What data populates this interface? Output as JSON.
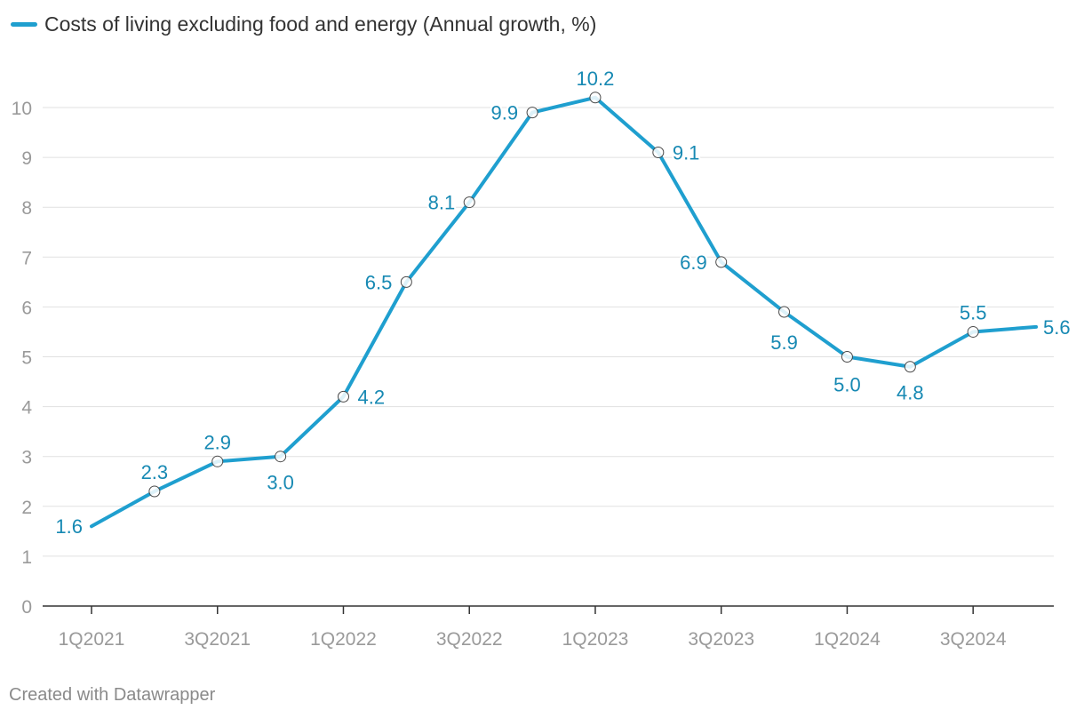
{
  "chart_data": {
    "type": "line",
    "title": "",
    "xlabel": "",
    "ylabel": "",
    "ylim": [
      0,
      10
    ],
    "y_ticks": [
      "0",
      "1",
      "2",
      "3",
      "4",
      "5",
      "6",
      "7",
      "8",
      "9",
      "10"
    ],
    "x_tick_labels": [
      "1Q2021",
      "3Q2021",
      "1Q2022",
      "3Q2022",
      "1Q2023",
      "3Q2023",
      "1Q2024",
      "3Q2024"
    ],
    "categories": [
      "1Q2021",
      "2Q2021",
      "3Q2021",
      "4Q2021",
      "1Q2022",
      "2Q2022",
      "3Q2022",
      "4Q2022",
      "1Q2023",
      "2Q2023",
      "3Q2023",
      "4Q2023",
      "1Q2024",
      "2Q2024",
      "3Q2024",
      "4Q2024"
    ],
    "series": [
      {
        "name": "Costs of living excluding food and energy (Annual growth, %)",
        "values": [
          1.6,
          2.3,
          2.9,
          3.0,
          4.2,
          6.5,
          8.1,
          9.9,
          10.2,
          9.1,
          6.9,
          5.9,
          5.0,
          4.8,
          5.5,
          5.6
        ],
        "labels": [
          "1.6",
          "2.3",
          "2.9",
          "3.0",
          "4.2",
          "6.5",
          "8.1",
          "9.9",
          "10.2",
          "9.1",
          "6.9",
          "5.9",
          "5.0",
          "4.8",
          "5.5",
          "5.6"
        ]
      }
    ],
    "colors": {
      "line": "#1f9fcf",
      "label": "#1789b3",
      "grid": "#e1e1e1",
      "axis": "#333333",
      "tick_text": "#9a9a9a"
    }
  },
  "legend": {
    "label": "Costs of living excluding food and energy (Annual growth, %)"
  },
  "footer": {
    "text": "Created with Datawrapper"
  }
}
